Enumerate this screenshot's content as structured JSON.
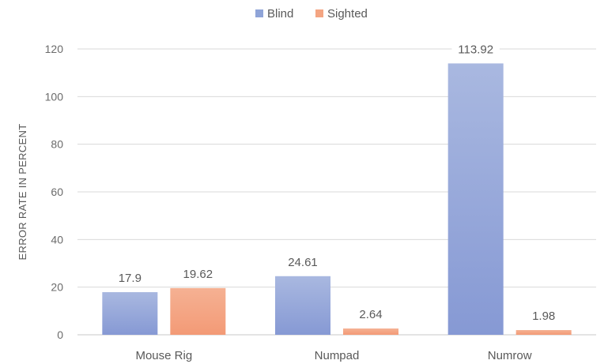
{
  "chart_data": {
    "type": "bar",
    "categories": [
      "Mouse Rig",
      "Numpad",
      "Numrow"
    ],
    "series": [
      {
        "name": "Blind",
        "values": [
          17.9,
          24.61,
          113.92
        ],
        "color": "#8fa4d8"
      },
      {
        "name": "Sighted",
        "values": [
          19.62,
          2.64,
          1.98
        ],
        "color": "#f4a582"
      }
    ],
    "data_labels": [
      [
        "17.9",
        "24.61",
        "113.92"
      ],
      [
        "19.62",
        "2.64",
        "1.98"
      ]
    ],
    "title": "",
    "xlabel": "",
    "ylabel": "ERROR RATE IN PERCENT",
    "ylim": [
      0,
      120
    ],
    "yticks": [
      0,
      20,
      40,
      60,
      80,
      100,
      120
    ],
    "grid": true,
    "legend": "top-center"
  }
}
